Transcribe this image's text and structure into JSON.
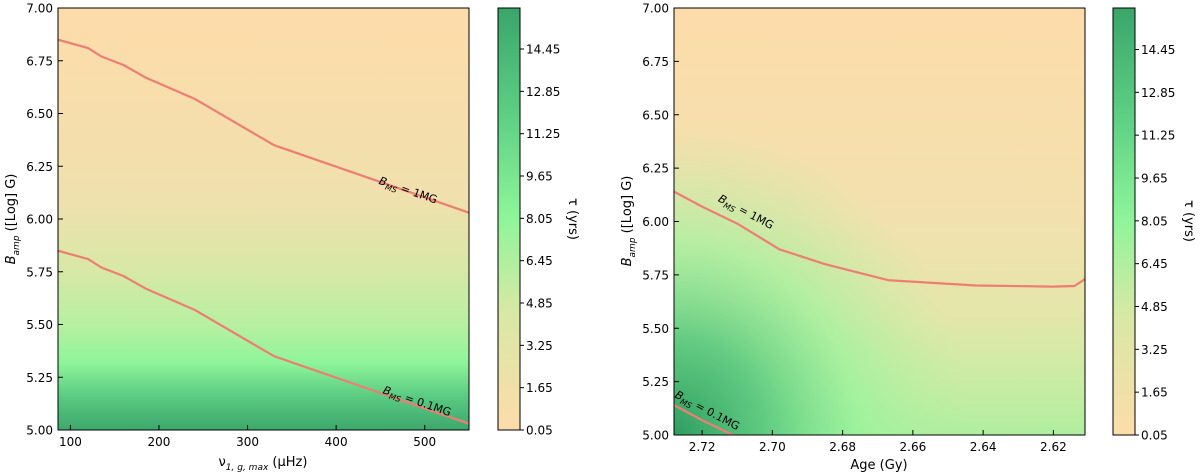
{
  "chart_data": [
    {
      "type": "heatmap",
      "xlabel_main": "ν",
      "xlabel_sub": "1, g, max",
      "xlabel_unit": " (μHz)",
      "ylabel_main": "B",
      "ylabel_sub": "amp",
      "ylabel_unit": " ([Log] G)",
      "xlim": [
        86,
        550
      ],
      "ylim": [
        5.0,
        7.0
      ],
      "x_reversed": false,
      "x_ticks": [
        100,
        200,
        300,
        400,
        500
      ],
      "y_ticks": [
        5.0,
        5.25,
        5.5,
        5.75,
        6.0,
        6.25,
        6.5,
        6.75,
        7.0
      ],
      "y_tick_labels": [
        "5.00",
        "5.25",
        "5.50",
        "5.75",
        "6.00",
        "6.25",
        "6.50",
        "6.75",
        "7.00"
      ],
      "colorbar": {
        "label": "τ (yrs)",
        "ticks": [
          "0.05",
          "1.65",
          "3.25",
          "4.85",
          "6.45",
          "8.05",
          "9.65",
          "11.25",
          "12.85",
          "14.45"
        ],
        "range": [
          0.05,
          16.0
        ]
      },
      "contours": [
        {
          "label_main": "B",
          "label_sub": "MS",
          "label_rest": " = 1MG",
          "label_at": [
            480,
            6.12
          ],
          "label_angle": 19,
          "points": [
            [
              86,
              6.85
            ],
            [
              120,
              6.81
            ],
            [
              135,
              6.77
            ],
            [
              160,
              6.73
            ],
            [
              185,
              6.67
            ],
            [
              240,
              6.57
            ],
            [
              330,
              6.35
            ],
            [
              550,
              6.03
            ]
          ]
        },
        {
          "label_main": "B",
          "label_sub": "MS",
          "label_rest": " = 0.1MG",
          "label_at": [
            490,
            5.12
          ],
          "label_angle": 19,
          "points": [
            [
              86,
              5.85
            ],
            [
              120,
              5.81
            ],
            [
              135,
              5.77
            ],
            [
              160,
              5.73
            ],
            [
              185,
              5.67
            ],
            [
              240,
              5.57
            ],
            [
              330,
              5.35
            ],
            [
              550,
              5.03
            ]
          ]
        }
      ]
    },
    {
      "type": "heatmap",
      "xlabel_main": "Age (Gy)",
      "xlabel_sub": "",
      "xlabel_unit": "",
      "ylabel_main": "B",
      "ylabel_sub": "amp",
      "ylabel_unit": " ([Log] G)",
      "xlim": [
        2.728,
        2.611
      ],
      "ylim": [
        5.0,
        7.0
      ],
      "x_reversed": true,
      "x_ticks": [
        2.72,
        2.7,
        2.68,
        2.66,
        2.64,
        2.62
      ],
      "x_tick_labels": [
        "2.72",
        "2.70",
        "2.68",
        "2.66",
        "2.64",
        "2.62"
      ],
      "y_ticks": [
        5.0,
        5.25,
        5.5,
        5.75,
        6.0,
        6.25,
        6.5,
        6.75,
        7.0
      ],
      "y_tick_labels": [
        "5.00",
        "5.25",
        "5.50",
        "5.75",
        "6.00",
        "6.25",
        "6.50",
        "6.75",
        "7.00"
      ],
      "colorbar": {
        "label": "τ (yrs)",
        "ticks": [
          "0.05",
          "1.65",
          "3.25",
          "4.85",
          "6.45",
          "8.05",
          "9.65",
          "11.25",
          "12.85",
          "14.45"
        ],
        "range": [
          0.05,
          16.0
        ]
      },
      "contours": [
        {
          "label_main": "B",
          "label_sub": "MS",
          "label_rest": " = 1MG",
          "label_at": [
            2.708,
            6.03
          ],
          "label_angle": 28,
          "points": [
            [
              2.728,
              6.14
            ],
            [
              2.72,
              6.07
            ],
            [
              2.71,
              5.99
            ],
            [
              2.698,
              5.87
            ],
            [
              2.685,
              5.8
            ],
            [
              2.667,
              5.725
            ],
            [
              2.642,
              5.7
            ],
            [
              2.62,
              5.695
            ],
            [
              2.614,
              5.698
            ],
            [
              2.611,
              5.73
            ]
          ]
        },
        {
          "label_main": "B",
          "label_sub": "MS",
          "label_rest": " = 0.1MG",
          "label_at": [
            2.719,
            5.1
          ],
          "label_angle": 28,
          "points": [
            [
              2.728,
              5.14
            ],
            [
              2.72,
              5.07
            ],
            [
              2.71,
              4.99
            ]
          ]
        }
      ]
    }
  ]
}
